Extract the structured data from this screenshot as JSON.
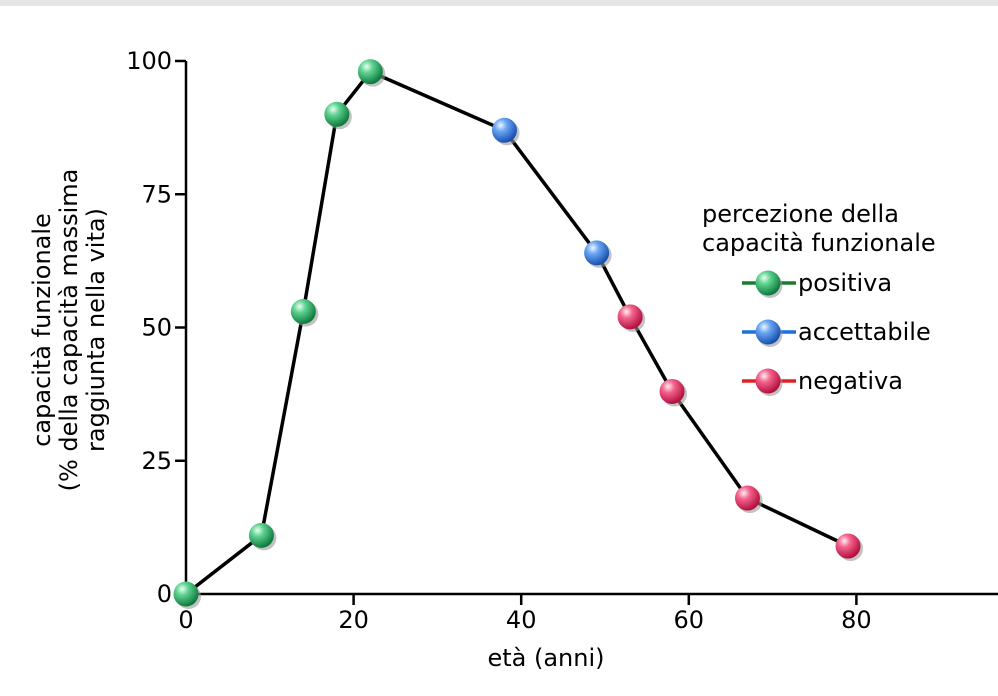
{
  "chart_data": {
    "type": "line",
    "xlabel": "età (anni)",
    "ylabel_lines": [
      "capacità funzionale",
      "(% della capacità massima",
      "raggiunta nella vita)"
    ],
    "xlim": [
      0,
      100
    ],
    "ylim": [
      0,
      100
    ],
    "xticks": [
      "0",
      "20",
      "40",
      "60",
      "80"
    ],
    "xtick_values": [
      0,
      20,
      40,
      60,
      80
    ],
    "yticks": [
      "0",
      "25",
      "50",
      "75",
      "100"
    ],
    "ytick_values": [
      0,
      25,
      50,
      75,
      100
    ],
    "grid": false,
    "line_color": "#000000",
    "points": [
      {
        "x": 0,
        "y": 0,
        "category": "positiva"
      },
      {
        "x": 9,
        "y": 11,
        "category": "positiva"
      },
      {
        "x": 14,
        "y": 53,
        "category": "positiva"
      },
      {
        "x": 18,
        "y": 90,
        "category": "positiva"
      },
      {
        "x": 22,
        "y": 98,
        "category": "positiva"
      },
      {
        "x": 38,
        "y": 87,
        "category": "accettabile"
      },
      {
        "x": 49,
        "y": 64,
        "category": "accettabile"
      },
      {
        "x": 53,
        "y": 52,
        "category": "negativa"
      },
      {
        "x": 58,
        "y": 38,
        "category": "negativa"
      },
      {
        "x": 67,
        "y": 18,
        "category": "negativa"
      },
      {
        "x": 79,
        "y": 9,
        "category": "negativa"
      }
    ],
    "legend": {
      "title_lines": [
        "percezione della",
        "capacità funzionale"
      ],
      "placement": "right",
      "entries": [
        {
          "key": "positiva",
          "label": "positiva",
          "color": "#1fa35c",
          "line_color": "#1a7a2e"
        },
        {
          "key": "accettabile",
          "label": "accettabile",
          "color": "#2f7de0",
          "line_color": "#1f6fd6"
        },
        {
          "key": "negativa",
          "label": "negativa",
          "color": "#e8245f",
          "line_color": "#e02020"
        }
      ]
    }
  }
}
